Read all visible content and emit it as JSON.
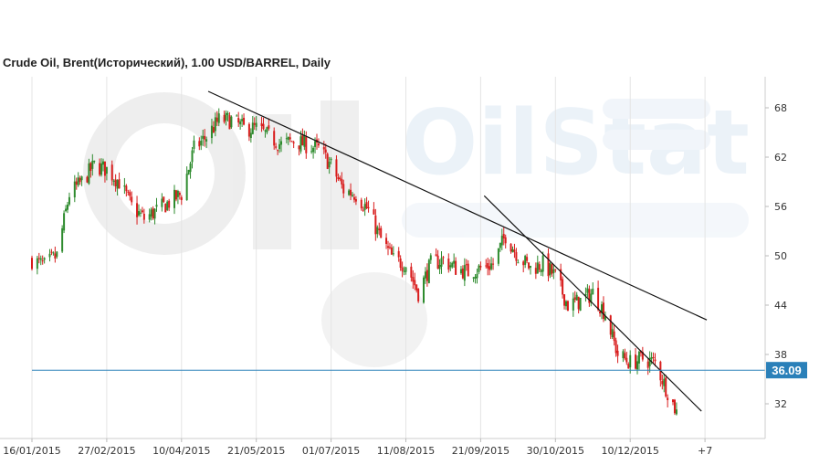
{
  "chart_data": {
    "type": "candlestick",
    "title": "Crude Oil, Brent(Исторический), 1.00 USD/BARREL, Daily",
    "watermark": "OilStat",
    "x_tick_labels": [
      "16/01/2015",
      "27/02/2015",
      "10/04/2015",
      "21/05/2015",
      "01/07/2015",
      "11/08/2015",
      "21/09/2015",
      "30/10/2015",
      "10/12/2015",
      "+7"
    ],
    "y_tick_labels": [
      "32",
      "38",
      "44",
      "50",
      "56",
      "62",
      "68"
    ],
    "ylim": [
      28,
      72
    ],
    "x_range": [
      "2015-01-16",
      "2016-02-05"
    ],
    "grid": "vertical",
    "current_price": {
      "value": 36.09,
      "label": "36.09",
      "color": "#2a80b9"
    },
    "colors": {
      "up": "#2e8b2e",
      "down": "#d81c1c",
      "trendline": "#111111",
      "grid": "#e4e4e4"
    },
    "trendlines": [
      {
        "start": {
          "x": "2015-04-25",
          "y": 70.0
        },
        "end": {
          "x": "2016-01-30",
          "y": 42.2
        }
      },
      {
        "start": {
          "x": "2015-09-27",
          "y": 57.3
        },
        "end": {
          "x": "2016-01-27",
          "y": 31.1
        }
      }
    ],
    "series": [
      {
        "date": "2015-01-16",
        "close": 49.5
      },
      {
        "date": "2015-01-23",
        "close": 48.8
      },
      {
        "date": "2015-01-30",
        "close": 50.0
      },
      {
        "date": "2015-02-06",
        "close": 57.5
      },
      {
        "date": "2015-02-13",
        "close": 59.0
      },
      {
        "date": "2015-02-20",
        "close": 61.0
      },
      {
        "date": "2015-02-27",
        "close": 60.5
      },
      {
        "date": "2015-03-06",
        "close": 59.0
      },
      {
        "date": "2015-03-13",
        "close": 56.0
      },
      {
        "date": "2015-03-20",
        "close": 54.5
      },
      {
        "date": "2015-03-27",
        "close": 55.5
      },
      {
        "date": "2015-04-03",
        "close": 56.5
      },
      {
        "date": "2015-04-10",
        "close": 57.5
      },
      {
        "date": "2015-04-17",
        "close": 63.0
      },
      {
        "date": "2015-04-24",
        "close": 64.5
      },
      {
        "date": "2015-05-01",
        "close": 66.5
      },
      {
        "date": "2015-05-08",
        "close": 66.5
      },
      {
        "date": "2015-05-15",
        "close": 65.5
      },
      {
        "date": "2015-05-22",
        "close": 65.5
      },
      {
        "date": "2015-05-29",
        "close": 64.5
      },
      {
        "date": "2015-06-05",
        "close": 63.5
      },
      {
        "date": "2015-06-12",
        "close": 64.0
      },
      {
        "date": "2015-06-19",
        "close": 63.5
      },
      {
        "date": "2015-06-26",
        "close": 63.0
      },
      {
        "date": "2015-07-03",
        "close": 61.0
      },
      {
        "date": "2015-07-10",
        "close": 58.0
      },
      {
        "date": "2015-07-17",
        "close": 57.5
      },
      {
        "date": "2015-07-24",
        "close": 55.5
      },
      {
        "date": "2015-07-31",
        "close": 52.0
      },
      {
        "date": "2015-08-07",
        "close": 49.5
      },
      {
        "date": "2015-08-14",
        "close": 49.0
      },
      {
        "date": "2015-08-21",
        "close": 45.5
      },
      {
        "date": "2015-08-28",
        "close": 49.0
      },
      {
        "date": "2015-09-04",
        "close": 49.5
      },
      {
        "date": "2015-09-11",
        "close": 48.5
      },
      {
        "date": "2015-09-18",
        "close": 48.0
      },
      {
        "date": "2015-09-25",
        "close": 48.5
      },
      {
        "date": "2015-10-02",
        "close": 49.0
      },
      {
        "date": "2015-10-09",
        "close": 52.5
      },
      {
        "date": "2015-10-16",
        "close": 50.0
      },
      {
        "date": "2015-10-23",
        "close": 48.5
      },
      {
        "date": "2015-10-30",
        "close": 49.0
      },
      {
        "date": "2015-11-06",
        "close": 47.5
      },
      {
        "date": "2015-11-13",
        "close": 44.0
      },
      {
        "date": "2015-11-20",
        "close": 44.5
      },
      {
        "date": "2015-11-27",
        "close": 45.5
      },
      {
        "date": "2015-12-04",
        "close": 43.0
      },
      {
        "date": "2015-12-11",
        "close": 38.0
      },
      {
        "date": "2015-12-18",
        "close": 37.0
      },
      {
        "date": "2015-12-25",
        "close": 37.5
      },
      {
        "date": "2016-01-01",
        "close": 37.0
      },
      {
        "date": "2016-01-08",
        "close": 33.5
      },
      {
        "date": "2016-01-13",
        "close": 31.0
      }
    ]
  }
}
